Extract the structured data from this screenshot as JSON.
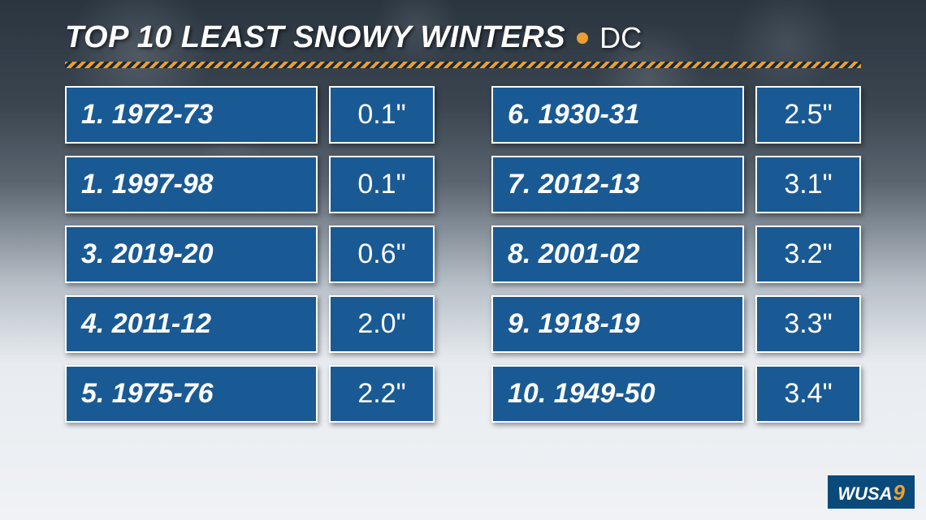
{
  "header": {
    "title": "TOP 10 LEAST SNOWY WINTERS",
    "location": "DC",
    "bullet_color": "#e8a030"
  },
  "separator": {
    "stripe_color_1": "#e8a030",
    "stripe_color_2": "#1a2838"
  },
  "cell_style": {
    "background": "#1a5a94",
    "border_color": "#ffffff",
    "text_color": "#ffffff",
    "label_fontsize": 34,
    "value_fontsize": 34
  },
  "left": [
    {
      "label": "1. 1972-73",
      "value": "0.1\""
    },
    {
      "label": "1. 1997-98",
      "value": "0.1\""
    },
    {
      "label": "3. 2019-20",
      "value": "0.6\""
    },
    {
      "label": "4. 2011-12",
      "value": "2.0\""
    },
    {
      "label": "5. 1975-76",
      "value": "2.2\""
    }
  ],
  "right": [
    {
      "label": "6. 1930-31",
      "value": "2.5\""
    },
    {
      "label": "7. 2012-13",
      "value": "3.1\""
    },
    {
      "label": "8. 2001-02",
      "value": "3.2\""
    },
    {
      "label": "9. 1918-19",
      "value": "3.3\""
    },
    {
      "label": "10. 1949-50",
      "value": "3.4\""
    }
  ],
  "logo": {
    "text": "WUSA",
    "number": "9",
    "background": "#0a4a7a",
    "text_color": "#ffffff",
    "number_color": "#f0a030"
  },
  "background": {
    "gradient_top": "#2a3540",
    "gradient_bottom": "#f0f2f5"
  }
}
